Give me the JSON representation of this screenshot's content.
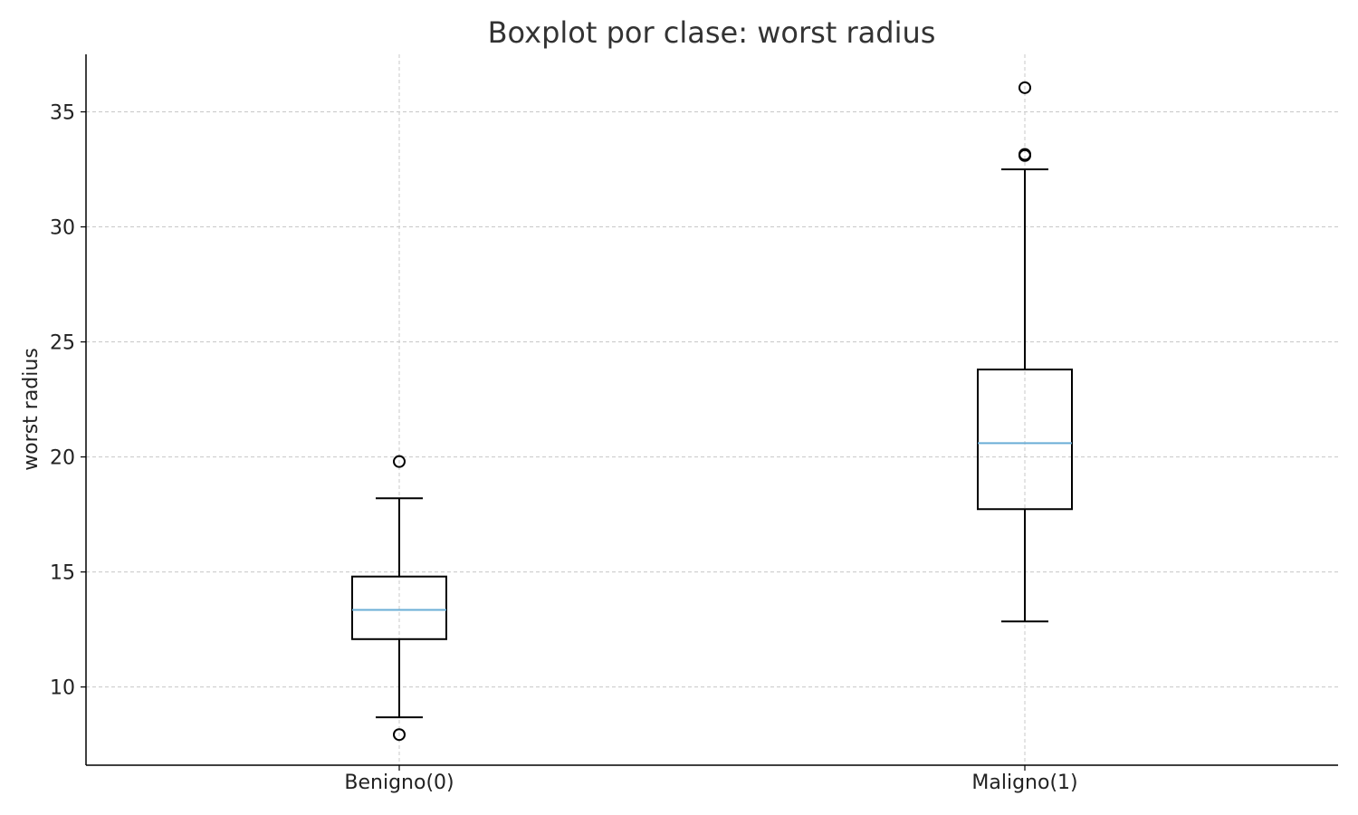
{
  "chart_data": {
    "type": "box",
    "title": "Boxplot por clase: worst radius",
    "xlabel": "",
    "ylabel": "worst radius",
    "ylim": [
      6.6,
      37.5
    ],
    "yticks": [
      10,
      15,
      20,
      25,
      30,
      35
    ],
    "grid": true,
    "categories": [
      "Benigno(0)",
      "Maligno(1)"
    ],
    "boxes": [
      {
        "category": "Benigno(0)",
        "whisker_low": 8.68,
        "q1": 12.08,
        "median": 13.35,
        "q3": 14.8,
        "whisker_high": 18.2,
        "outliers": [
          7.93,
          19.8
        ]
      },
      {
        "category": "Maligno(1)",
        "whisker_low": 12.85,
        "q1": 17.73,
        "median": 20.6,
        "q3": 23.8,
        "whisker_high": 32.5,
        "outliers": [
          33.1,
          33.15,
          36.05
        ]
      }
    ],
    "colors": {
      "box": "#000000",
      "median": "#6aaed6",
      "grid": "#c8c8c8"
    }
  }
}
